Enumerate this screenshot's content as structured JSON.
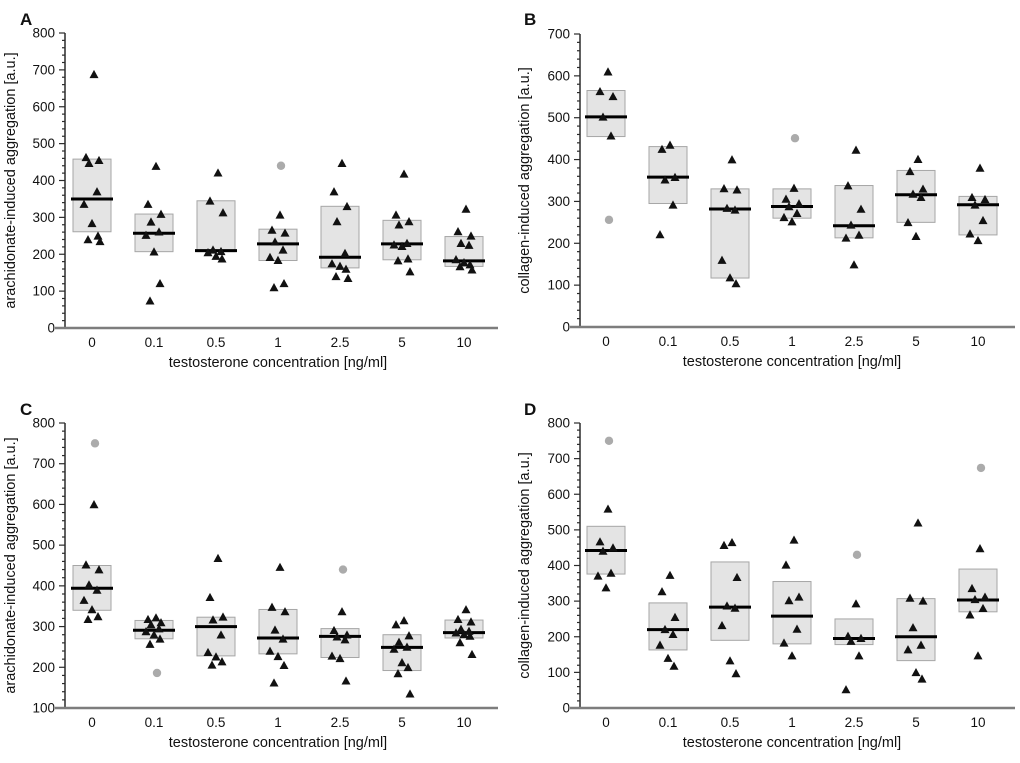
{
  "figure_title": "",
  "colors": {
    "background": "#ffffff",
    "box_fill": "#e4e4e4",
    "box_stroke": "#a6a6a6",
    "median_line": "#000000",
    "data_point": "#111111",
    "outlier_point": "#ababab",
    "x_axis_line": "#7d7d7d",
    "y_axis_line": "#2b2b2b",
    "text": "#111111"
  },
  "chart_data": {
    "type": "box-scatter",
    "description": "Four-panel box plots (median, interquartile box) with overlaid individual data points (black triangles) and grey circle outliers",
    "x_axis_label": "testosterone concentration [ng/ml]",
    "categories": [
      "0",
      "0.1",
      "0.5",
      "1",
      "2.5",
      "5",
      "10"
    ],
    "panels": [
      {
        "letter": "A",
        "y_axis_label": "arachidonate-induced aggregation [a.u.]",
        "y_min": 0,
        "y_max": 800,
        "y_major_tick": 100,
        "y_minor_tick": 20,
        "y_tick_labels": [
          "0",
          "100",
          "200",
          "300",
          "400",
          "500",
          "600",
          "700",
          "800"
        ],
        "groups": [
          {
            "category": "0",
            "box_low": 261,
            "box_high": 458,
            "median": 350,
            "points": [
              688,
              463,
              455,
              447,
              370,
              336,
              284,
              250,
              240,
              235
            ],
            "outliers": []
          },
          {
            "category": "0.1",
            "box_low": 207,
            "box_high": 309,
            "median": 257,
            "points": [
              439,
              336,
              309,
              288,
              261,
              252,
              207,
              121,
              74
            ],
            "outliers": []
          },
          {
            "category": "0.5",
            "box_low": 207,
            "box_high": 345,
            "median": 210,
            "points": [
              421,
              345,
              313,
              212,
              208,
              205,
              195,
              188
            ],
            "outliers": []
          },
          {
            "category": "1",
            "box_low": 183,
            "box_high": 268,
            "median": 228,
            "points": [
              307,
              266,
              258,
              234,
              212,
              192,
              184,
              121,
              110
            ],
            "outliers": [
              440
            ]
          },
          {
            "category": "2.5",
            "box_low": 163,
            "box_high": 330,
            "median": 192,
            "points": [
              447,
              370,
              330,
              289,
              203,
              175,
              168,
              160,
              140,
              135
            ],
            "outliers": []
          },
          {
            "category": "5",
            "box_low": 185,
            "box_high": 292,
            "median": 228,
            "points": [
              418,
              307,
              289,
              280,
              230,
              226,
              222,
              188,
              183,
              153
            ],
            "outliers": []
          },
          {
            "category": "10",
            "box_low": 167,
            "box_high": 248,
            "median": 182,
            "points": [
              323,
              262,
              250,
              230,
              225,
              186,
              178,
              172,
              167,
              158
            ],
            "outliers": []
          }
        ]
      },
      {
        "letter": "B",
        "y_axis_label": "collagen-induced aggregation [a.u.]",
        "y_min": 0,
        "y_max": 700,
        "y_major_tick": 100,
        "y_minor_tick": 20,
        "y_tick_labels": [
          "0",
          "100",
          "200",
          "300",
          "400",
          "500",
          "600",
          "700"
        ],
        "groups": [
          {
            "category": "0",
            "box_low": 455,
            "box_high": 565,
            "median": 502,
            "points": [
              610,
              563,
              551,
              502,
              457
            ],
            "outliers": [
              256
            ]
          },
          {
            "category": "0.1",
            "box_low": 295,
            "box_high": 431,
            "median": 358,
            "points": [
              435,
              425,
              358,
              352,
              292,
              221
            ],
            "outliers": []
          },
          {
            "category": "0.5",
            "box_low": 117,
            "box_high": 330,
            "median": 282,
            "points": [
              400,
              331,
              328,
              284,
              280,
              160,
              118,
              104
            ],
            "outliers": []
          },
          {
            "category": "1",
            "box_low": 260,
            "box_high": 330,
            "median": 288,
            "points": [
              332,
              306,
              295,
              288,
              272,
              262,
              252
            ],
            "outliers": [
              451
            ]
          },
          {
            "category": "2.5",
            "box_low": 213,
            "box_high": 338,
            "median": 242,
            "points": [
              423,
              338,
              282,
              244,
              220,
              213,
              149
            ],
            "outliers": []
          },
          {
            "category": "5",
            "box_low": 250,
            "box_high": 374,
            "median": 316,
            "points": [
              401,
              372,
              330,
              318,
              310,
              250,
              217
            ],
            "outliers": []
          },
          {
            "category": "10",
            "box_low": 220,
            "box_high": 312,
            "median": 292,
            "points": [
              380,
              310,
              305,
              292,
              255,
              223,
              207
            ],
            "outliers": []
          }
        ]
      },
      {
        "letter": "C",
        "y_axis_label": "arachidonate-induced aggregation [a.u.]",
        "y_min": 100,
        "y_max": 800,
        "y_major_tick": 100,
        "y_minor_tick": 20,
        "y_tick_labels": [
          "100",
          "200",
          "300",
          "400",
          "500",
          "600",
          "700",
          "800"
        ],
        "groups": [
          {
            "category": "0",
            "box_low": 340,
            "box_high": 450,
            "median": 394,
            "points": [
              600,
              452,
              440,
              403,
              390,
              365,
              342,
              325,
              318
            ],
            "outliers": [
              750
            ]
          },
          {
            "category": "0.1",
            "box_low": 270,
            "box_high": 315,
            "median": 291,
            "points": [
              322,
              318,
              310,
              305,
              295,
              288,
              280,
              270,
              257
            ],
            "outliers": [
              186
            ]
          },
          {
            "category": "0.5",
            "box_low": 228,
            "box_high": 323,
            "median": 300,
            "points": [
              468,
              372,
              324,
              317,
              280,
              237,
              226,
              214,
              206
            ],
            "outliers": []
          },
          {
            "category": "1",
            "box_low": 233,
            "box_high": 342,
            "median": 272,
            "points": [
              446,
              348,
              337,
              292,
              270,
              240,
              227,
              205,
              162
            ],
            "outliers": []
          },
          {
            "category": "2.5",
            "box_low": 224,
            "box_high": 295,
            "median": 276,
            "points": [
              337,
              291,
              280,
              275,
              268,
              228,
              222,
              167
            ],
            "outliers": [
              440
            ]
          },
          {
            "category": "5",
            "box_low": 192,
            "box_high": 280,
            "median": 249,
            "points": [
              315,
              305,
              278,
              262,
              250,
              245,
              212,
              200,
              185,
              135
            ],
            "outliers": []
          },
          {
            "category": "10",
            "box_low": 272,
            "box_high": 316,
            "median": 285,
            "points": [
              342,
              318,
              312,
              294,
              289,
              285,
              281,
              277,
              261,
              232
            ],
            "outliers": []
          }
        ]
      },
      {
        "letter": "D",
        "y_axis_label": "collagen-induced aggregation [a.u.]",
        "y_min": 0,
        "y_max": 800,
        "y_major_tick": 100,
        "y_minor_tick": 20,
        "y_tick_labels": [
          "0",
          "100",
          "200",
          "300",
          "400",
          "500",
          "600",
          "700",
          "800"
        ],
        "groups": [
          {
            "category": "0",
            "box_low": 376,
            "box_high": 510,
            "median": 442,
            "points": [
              559,
              467,
              450,
              441,
              379,
              371,
              338
            ],
            "outliers": [
              750
            ]
          },
          {
            "category": "0.1",
            "box_low": 163,
            "box_high": 295,
            "median": 220,
            "points": [
              373,
              327,
              255,
              221,
              207,
              177,
              140,
              118
            ],
            "outliers": []
          },
          {
            "category": "0.5",
            "box_low": 190,
            "box_high": 410,
            "median": 283,
            "points": [
              465,
              457,
              367,
              287,
              281,
              232,
              133,
              97
            ],
            "outliers": []
          },
          {
            "category": "1",
            "box_low": 180,
            "box_high": 355,
            "median": 258,
            "points": [
              472,
              402,
              312,
              302,
              222,
              183,
              147
            ],
            "outliers": []
          },
          {
            "category": "2.5",
            "box_low": 178,
            "box_high": 250,
            "median": 195,
            "points": [
              293,
              202,
              196,
              188,
              147,
              52
            ],
            "outliers": [
              430
            ]
          },
          {
            "category": "5",
            "box_low": 133,
            "box_high": 307,
            "median": 200,
            "points": [
              520,
              309,
              301,
              226,
              177,
              164,
              100,
              82
            ],
            "outliers": []
          },
          {
            "category": "10",
            "box_low": 270,
            "box_high": 390,
            "median": 303,
            "points": [
              448,
              336,
              312,
              305,
              280,
              262,
              147
            ],
            "outliers": [
              674
            ]
          }
        ]
      }
    ]
  }
}
